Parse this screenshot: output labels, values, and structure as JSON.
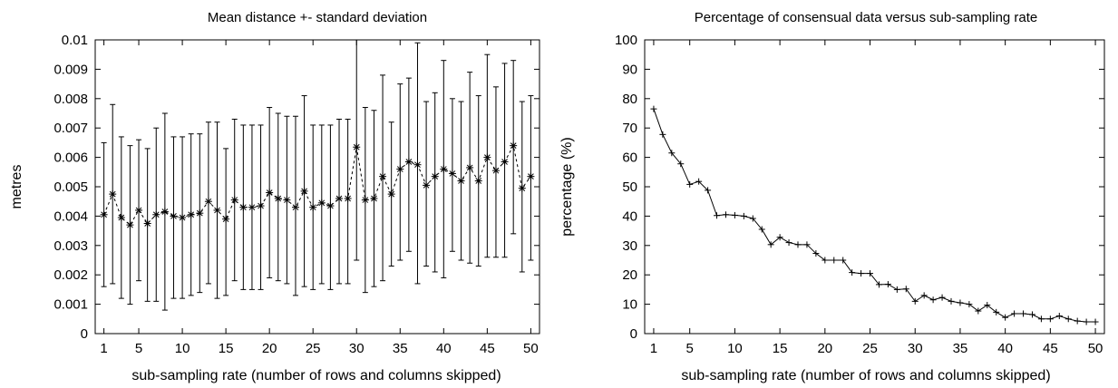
{
  "chart_data": [
    {
      "type": "scatter",
      "title": "Mean distance +- standard deviation",
      "xlabel": "sub-sampling rate (number of rows and columns skipped)",
      "ylabel": "metres",
      "xlim": [
        0,
        51
      ],
      "ylim": [
        0,
        0.01
      ],
      "xticks": [
        "1",
        "5",
        "10",
        "15",
        "20",
        "25",
        "30",
        "35",
        "40",
        "45",
        "50"
      ],
      "yticks": [
        "0",
        "0.001",
        "0.002",
        "0.003",
        "0.004",
        "0.005",
        "0.006",
        "0.007",
        "0.008",
        "0.009",
        "0.01"
      ],
      "error_bars": true,
      "line_style": "dashed",
      "marker": "asterisk",
      "grid": false,
      "x": [
        1,
        2,
        3,
        4,
        5,
        6,
        7,
        8,
        9,
        10,
        11,
        12,
        13,
        14,
        15,
        16,
        17,
        18,
        19,
        20,
        21,
        22,
        23,
        24,
        25,
        26,
        27,
        28,
        29,
        30,
        31,
        32,
        33,
        34,
        35,
        36,
        37,
        38,
        39,
        40,
        41,
        42,
        43,
        44,
        45,
        46,
        47,
        48,
        49,
        50
      ],
      "mean": [
        0.00405,
        0.00475,
        0.00395,
        0.0037,
        0.0042,
        0.00375,
        0.00405,
        0.00415,
        0.004,
        0.00395,
        0.00405,
        0.0041,
        0.0045,
        0.0042,
        0.0039,
        0.00455,
        0.0043,
        0.0043,
        0.00435,
        0.0048,
        0.0046,
        0.00455,
        0.0043,
        0.00485,
        0.0043,
        0.00445,
        0.00435,
        0.0046,
        0.0046,
        0.00635,
        0.00455,
        0.0046,
        0.00535,
        0.00475,
        0.0056,
        0.00585,
        0.00575,
        0.00505,
        0.00535,
        0.0056,
        0.00545,
        0.0052,
        0.00565,
        0.0052,
        0.006,
        0.00555,
        0.00585,
        0.0064,
        0.00495,
        0.00535
      ],
      "upper": [
        0.0065,
        0.0078,
        0.0067,
        0.0064,
        0.0066,
        0.0063,
        0.007,
        0.0075,
        0.0067,
        0.0067,
        0.0068,
        0.0068,
        0.0072,
        0.0072,
        0.0063,
        0.0073,
        0.0071,
        0.0071,
        0.0071,
        0.0077,
        0.0075,
        0.0074,
        0.0074,
        0.0081,
        0.0071,
        0.0071,
        0.0071,
        0.0073,
        0.0073,
        0.01,
        0.0077,
        0.0076,
        0.0088,
        0.0072,
        0.0085,
        0.0087,
        0.0099,
        0.0079,
        0.0082,
        0.0093,
        0.008,
        0.0079,
        0.0089,
        0.0081,
        0.0095,
        0.0084,
        0.0092,
        0.0093,
        0.0079,
        0.0081
      ],
      "lower": [
        0.0016,
        0.0017,
        0.0012,
        0.001,
        0.0018,
        0.0011,
        0.0011,
        0.0008,
        0.0012,
        0.0012,
        0.0013,
        0.0014,
        0.0017,
        0.0012,
        0.0013,
        0.0018,
        0.0015,
        0.0015,
        0.0015,
        0.0019,
        0.0018,
        0.0017,
        0.0013,
        0.0016,
        0.0015,
        0.0017,
        0.0015,
        0.0017,
        0.0017,
        0.0025,
        0.0014,
        0.0016,
        0.0018,
        0.0023,
        0.0025,
        0.0028,
        0.0017,
        0.0023,
        0.0021,
        0.0019,
        0.0028,
        0.0025,
        0.0024,
        0.0023,
        0.0026,
        0.0026,
        0.0026,
        0.0034,
        0.0021,
        0.0025
      ]
    },
    {
      "type": "line",
      "title": "Percentage of consensual data versus sub-sampling rate",
      "xlabel": "sub-sampling rate (number of rows and columns skipped)",
      "ylabel": "percentage (%)",
      "xlim": [
        0,
        51
      ],
      "ylim": [
        0,
        100
      ],
      "xticks": [
        "1",
        "5",
        "10",
        "15",
        "20",
        "25",
        "30",
        "35",
        "40",
        "45",
        "50"
      ],
      "yticks": [
        "0",
        "10",
        "20",
        "30",
        "40",
        "50",
        "60",
        "70",
        "80",
        "90",
        "100"
      ],
      "marker": "plus",
      "line_style": "solid",
      "grid": false,
      "x": [
        1,
        2,
        3,
        4,
        5,
        6,
        7,
        8,
        9,
        10,
        11,
        12,
        13,
        14,
        15,
        16,
        17,
        18,
        19,
        20,
        21,
        22,
        23,
        24,
        25,
        26,
        27,
        28,
        29,
        30,
        31,
        32,
        33,
        34,
        35,
        36,
        37,
        38,
        39,
        40,
        41,
        42,
        43,
        44,
        45,
        46,
        47,
        48,
        49,
        50
      ],
      "y": [
        76.5,
        67.8,
        61.5,
        57.8,
        50.8,
        51.8,
        48.8,
        40.2,
        40.5,
        40.3,
        40,
        39.2,
        35.5,
        30.3,
        32.8,
        31,
        30.3,
        30.3,
        27.3,
        25,
        25,
        25,
        20.8,
        20.5,
        20.5,
        16.7,
        16.8,
        15,
        15.2,
        11,
        13,
        11.5,
        12.3,
        11,
        10.5,
        10,
        7.7,
        9.7,
        7.3,
        5.5,
        6.8,
        6.8,
        6.5,
        5,
        5,
        6,
        5,
        4.3,
        4,
        4
      ]
    }
  ]
}
